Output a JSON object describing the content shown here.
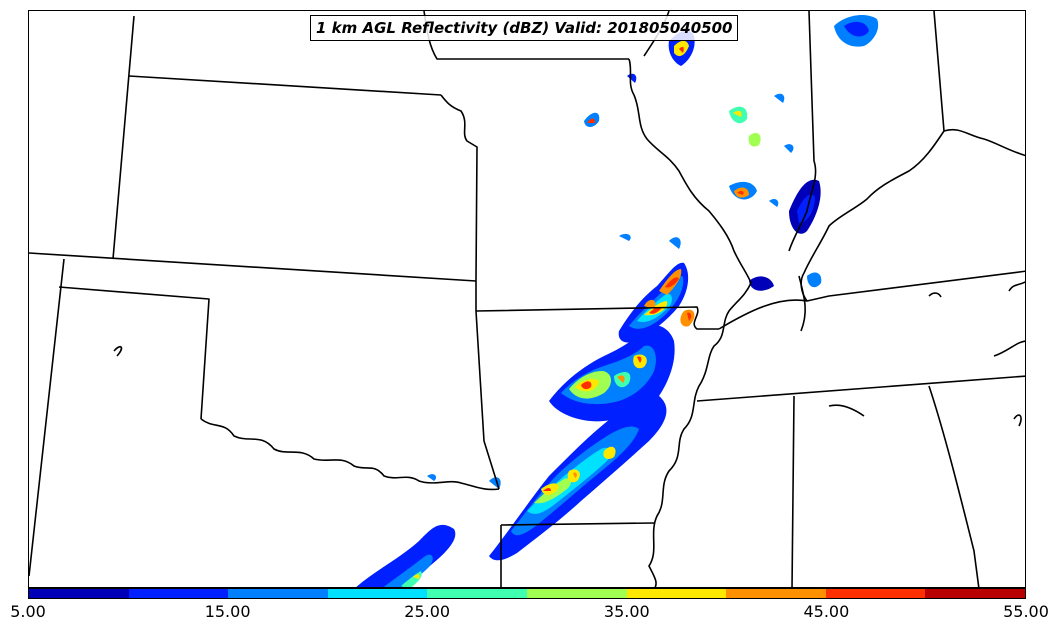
{
  "title": "1 km AGL Reflectivity (dBZ) Valid: 201805040500",
  "colorbar": {
    "colors": [
      "#0000b8",
      "#0020ff",
      "#0080ff",
      "#00e0ff",
      "#40ffb0",
      "#a0ff50",
      "#ffe800",
      "#ff9000",
      "#ff3000",
      "#b80000"
    ],
    "tick_labels": [
      "5.00",
      "15.00",
      "25.00",
      "35.00",
      "45.00",
      "55.00"
    ]
  }
}
